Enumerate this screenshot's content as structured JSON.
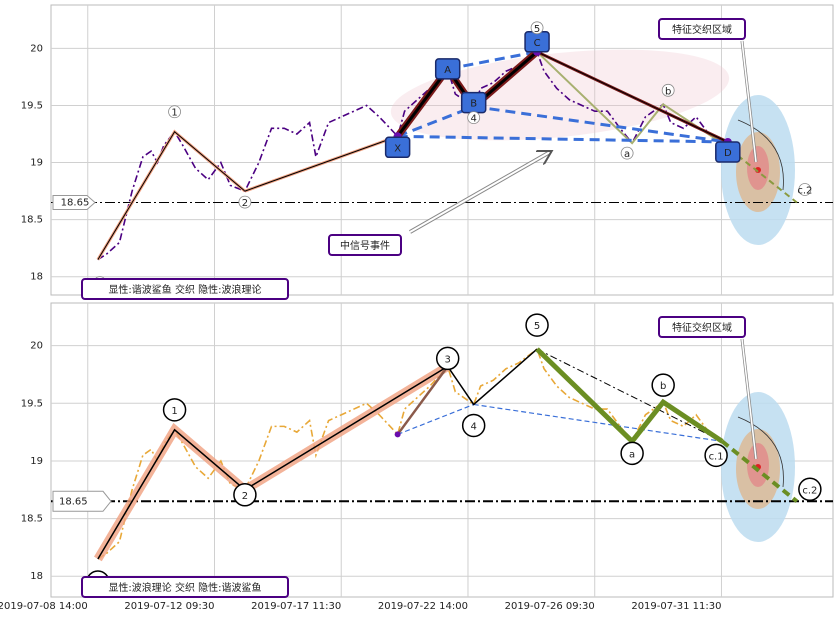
{
  "chart_data": [
    {
      "type": "line",
      "x": [
        1.6,
        3,
        5,
        7,
        8.7,
        10,
        11,
        12,
        13.7,
        15,
        17,
        19,
        21,
        22.5,
        24.8,
        27,
        29,
        31,
        33,
        35,
        36,
        38,
        40,
        42,
        44,
        46,
        48.9,
        50,
        52,
        54,
        56.8,
        58,
        60.9,
        62,
        64,
        66,
        68,
        70.9,
        72,
        74,
        76,
        78,
        80,
        82,
        84,
        85.9,
        88,
        90.8,
        92,
        94,
        96,
        98,
        100.1
      ],
      "series": [
        {
          "color": "#4b0082",
          "values": [
            18.15,
            18.2,
            18.3,
            18.75,
            19.05,
            19.1,
            19.0,
            19.15,
            19.27,
            19.15,
            18.95,
            18.85,
            19.0,
            18.8,
            18.75,
            19.0,
            19.3,
            19.3,
            19.25,
            19.35,
            19.05,
            19.35,
            19.4,
            19.45,
            19.5,
            19.4,
            19.23,
            19.45,
            19.55,
            19.65,
            19.82,
            19.6,
            19.49,
            19.65,
            19.7,
            19.8,
            19.85,
            19.97,
            19.8,
            19.65,
            19.55,
            19.5,
            19.45,
            19.45,
            19.3,
            19.17,
            19.4,
            19.51,
            19.35,
            19.3,
            19.4,
            19.25,
            19.17
          ]
        }
      ],
      "waves": {
        "labels": [
          "0",
          "1",
          "2",
          null,
          "4",
          "5",
          "a",
          "b",
          null,
          "c.2"
        ],
        "x": [
          1.6,
          13.7,
          24.8,
          56.8,
          60.9,
          70.9,
          85.9,
          90.8,
          100.1,
          111.9
        ],
        "values": [
          18.15,
          19.27,
          18.75,
          19.82,
          19.49,
          19.97,
          19.17,
          19.51,
          19.17,
          18.65
        ]
      },
      "pattern": {
        "labels": [
          "X",
          "A",
          "B",
          "C",
          "D"
        ],
        "x": [
          48.9,
          56.8,
          60.9,
          70.9,
          101
        ],
        "values": [
          19.23,
          19.82,
          19.49,
          19.97,
          19.18
        ]
      },
      "level": 18.65,
      "zone_label": "特征交织区域",
      "event_label": "中信号事件",
      "summary": "显性:谐波鲨鱼 交织 隐性:波浪理论",
      "xlim": [
        -5.8,
        117.6
      ],
      "ylim": [
        17.84,
        20.38
      ],
      "yticks": [
        18.0,
        18.5,
        19.0,
        19.5,
        20.0
      ],
      "grid": true
    },
    {
      "type": "line",
      "x": [
        1.6,
        3,
        5,
        7,
        8.7,
        10,
        11,
        12,
        13.7,
        15,
        17,
        19,
        21,
        22.5,
        24.8,
        27,
        29,
        31,
        33,
        35,
        36,
        38,
        40,
        42,
        44,
        46,
        48.9,
        50,
        52,
        54,
        56.8,
        58,
        60.9,
        62,
        64,
        66,
        68,
        70.9,
        72,
        74,
        76,
        78,
        80,
        82,
        84,
        85.9,
        88,
        90.8,
        92,
        94,
        96,
        98,
        100.1
      ],
      "series": [
        {
          "color": "#e8a838",
          "values": [
            18.15,
            18.2,
            18.3,
            18.75,
            19.05,
            19.1,
            19.0,
            19.15,
            19.27,
            19.15,
            18.95,
            18.85,
            19.0,
            18.8,
            18.75,
            19.0,
            19.3,
            19.3,
            19.25,
            19.35,
            19.05,
            19.35,
            19.4,
            19.45,
            19.5,
            19.4,
            19.23,
            19.45,
            19.55,
            19.65,
            19.82,
            19.6,
            19.49,
            19.65,
            19.7,
            19.8,
            19.85,
            19.97,
            19.8,
            19.65,
            19.55,
            19.5,
            19.45,
            19.45,
            19.3,
            19.17,
            19.4,
            19.51,
            19.35,
            19.3,
            19.4,
            19.25,
            19.17
          ]
        }
      ],
      "waves": {
        "labels": [
          "0",
          "1",
          "2",
          "3",
          "4",
          "5",
          "a",
          "b",
          "c.1",
          "c.2"
        ],
        "x": [
          1.6,
          13.7,
          24.8,
          56.8,
          60.9,
          70.9,
          85.9,
          90.8,
          100.1,
          111.9
        ],
        "values": [
          18.15,
          19.27,
          18.75,
          19.82,
          19.49,
          19.97,
          19.17,
          19.51,
          19.17,
          18.65
        ]
      },
      "pivot": {
        "x": 48.9,
        "value": 19.23
      },
      "level": 18.65,
      "zone_label": "特征交织区域",
      "summary": "显性:波浪理论 交织 隐性:谐波鲨鱼",
      "xlim": [
        -5.8,
        117.6
      ],
      "ylim": [
        17.82,
        20.37
      ],
      "yticks": [
        18.0,
        18.5,
        19.0,
        19.5,
        20.0
      ],
      "xticks": [
        {
          "value": 0,
          "label": "2019-07-08 14:00"
        },
        {
          "value": 20,
          "label": "2019-07-12 09:30"
        },
        {
          "value": 40,
          "label": "2019-07-17 11:30"
        },
        {
          "value": 60,
          "label": "2019-07-22 14:00"
        },
        {
          "value": 80,
          "label": "2019-07-26 09:30"
        },
        {
          "value": 100,
          "label": "2019-07-31 11:30"
        }
      ],
      "grid": true
    }
  ]
}
